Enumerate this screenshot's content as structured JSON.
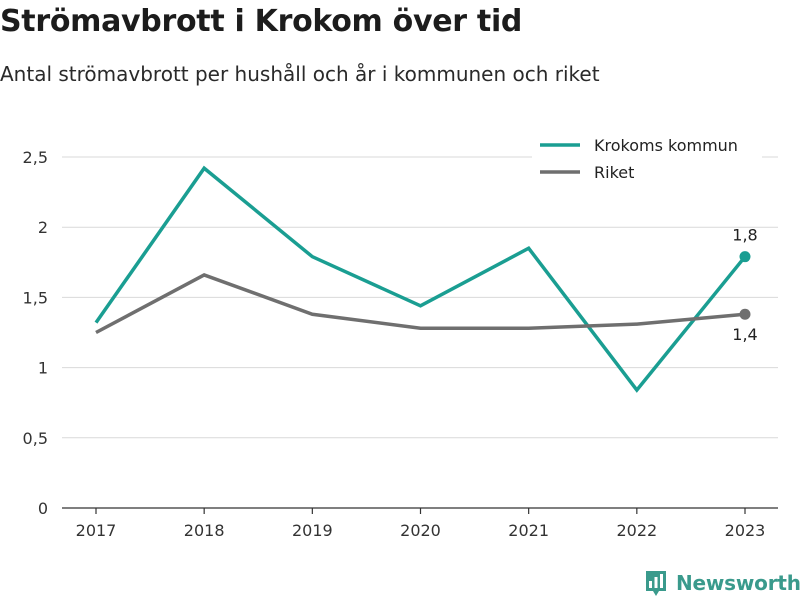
{
  "header": {
    "title": "Strömavbrott i Krokom över tid",
    "subtitle": "Antal strömavbrott per hushåll och år i kommunen och riket"
  },
  "chart_data": {
    "type": "line",
    "x": [
      "2017",
      "2018",
      "2019",
      "2020",
      "2021",
      "2022",
      "2023"
    ],
    "ylim": [
      0,
      2.5
    ],
    "yticks": [
      0,
      0.5,
      1,
      1.5,
      2,
      2.5
    ],
    "ytick_labels": [
      "0",
      "0,5",
      "1",
      "1,5",
      "2",
      "2,5"
    ],
    "grid": true,
    "legend_position": "top-right",
    "series": [
      {
        "name": "Krokoms kommun",
        "color": "#1a9e92",
        "values": [
          1.32,
          2.42,
          1.79,
          1.44,
          1.85,
          0.84,
          1.79
        ],
        "end_label": "1,8"
      },
      {
        "name": "Riket",
        "color": "#6f6f6f",
        "values": [
          1.25,
          1.66,
          1.38,
          1.28,
          1.28,
          1.31,
          1.38
        ],
        "end_label": "1,4"
      }
    ]
  },
  "brand": {
    "name": "Newsworthy",
    "icon": "bar-chart-icon",
    "color": "#3a9a8c"
  }
}
